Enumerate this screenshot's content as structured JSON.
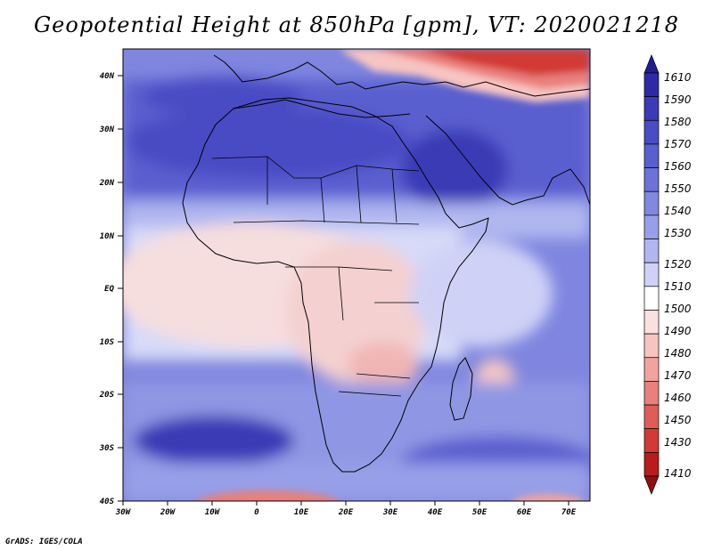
{
  "title": "Geopotential Height at 850hPa [gpm], VT: 2020021218",
  "credit": "GrADS: IGES/COLA",
  "map": {
    "lon_range": [
      -30,
      75
    ],
    "lat_range": [
      -40,
      45
    ],
    "lat_labels": [
      "40N",
      "30N",
      "20N",
      "10N",
      "EQ",
      "10S",
      "20S",
      "30S",
      "40S"
    ],
    "lon_labels": [
      "30W",
      "20W",
      "10W",
      "0",
      "10E",
      "20E",
      "30E",
      "40E",
      "50E",
      "60E",
      "70E"
    ]
  },
  "colorbar": {
    "labels": [
      "1610",
      "1590",
      "1580",
      "1570",
      "1560",
      "1550",
      "1540",
      "1530",
      "1520",
      "1510",
      "1500",
      "1490",
      "1480",
      "1470",
      "1460",
      "1450",
      "1430",
      "1410"
    ],
    "colors": [
      "#221c94",
      "#2e2aa6",
      "#3b3bb6",
      "#4a4cc4",
      "#5a5fcf",
      "#6c72d8",
      "#8088e0",
      "#979fe8",
      "#b0b7ef",
      "#cfd2f6",
      "#ffffff",
      "#fbe0e0",
      "#f7c4c2",
      "#f0a3a0",
      "#e8807c",
      "#df5c58",
      "#d23a36",
      "#b81c1c",
      "#8f0f0f"
    ]
  }
}
